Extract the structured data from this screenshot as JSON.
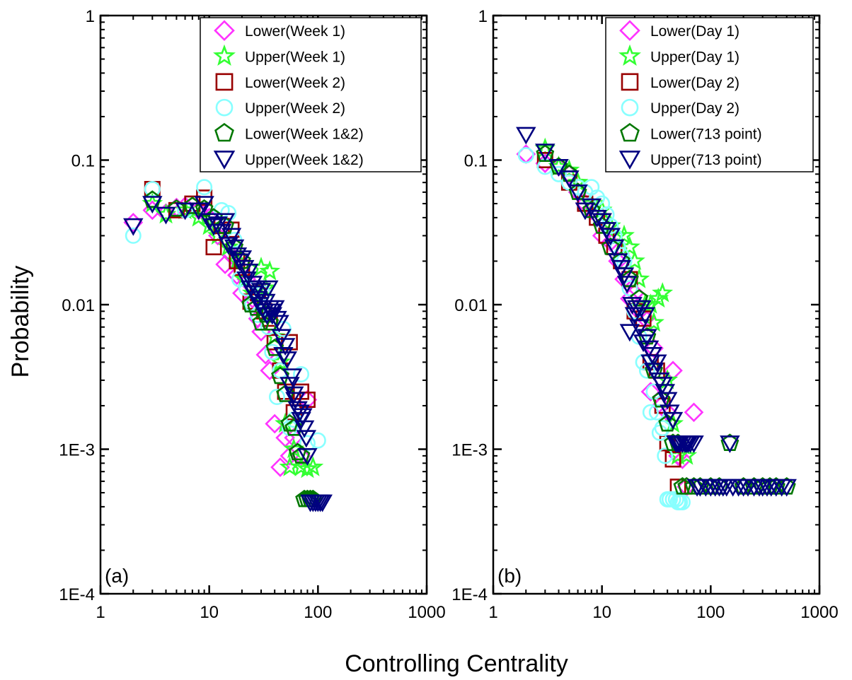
{
  "figure": {
    "ylabel": "Probability",
    "xlabel": "Controlling Centrality"
  },
  "chart_data": [
    {
      "type": "scatter",
      "panel_label": "(a)",
      "x_scale": "log",
      "y_scale": "log",
      "xlim": [
        1,
        1000
      ],
      "ylim": [
        0.0001,
        1
      ],
      "x_ticks": [
        1,
        10,
        100,
        1000
      ],
      "x_tick_labels": [
        "1",
        "10",
        "100",
        "1000"
      ],
      "y_ticks": [
        0.0001,
        0.001,
        0.01,
        0.1,
        1
      ],
      "y_tick_labels": [
        "1E-4",
        "1E-3",
        "0.01",
        "0.1",
        "1"
      ],
      "grid": false,
      "legend_position": "top-right",
      "series": [
        {
          "name": "Lower(Week 1)",
          "marker": "diamond",
          "color": "#ff33ff",
          "x": [
            2,
            3,
            4,
            5,
            6,
            8,
            10,
            12,
            14,
            16,
            18,
            20,
            22,
            25,
            28,
            30,
            33,
            36,
            40,
            45,
            50,
            55,
            60,
            70,
            80
          ],
          "y": [
            0.037,
            0.045,
            0.043,
            0.047,
            0.048,
            0.045,
            0.04,
            0.03,
            0.019,
            0.022,
            0.016,
            0.012,
            0.015,
            0.011,
            0.008,
            0.0065,
            0.0045,
            0.0035,
            0.0015,
            0.00075,
            0.0012,
            0.0009,
            0.0012,
            0.0009,
            0.0022
          ]
        },
        {
          "name": "Upper(Week 1)",
          "marker": "star",
          "color": "#33ff33",
          "x": [
            3,
            4,
            6,
            8,
            10,
            12,
            15,
            18,
            21,
            25,
            30,
            33,
            36,
            40,
            45,
            50,
            55,
            60,
            70,
            80,
            90
          ],
          "y": [
            0.05,
            0.042,
            0.045,
            0.04,
            0.035,
            0.03,
            0.025,
            0.02,
            0.015,
            0.012,
            0.018,
            0.013,
            0.017,
            0.006,
            0.004,
            0.0015,
            0.00075,
            0.001,
            0.00075,
            0.00073,
            0.00075
          ]
        },
        {
          "name": "Lower(Week 2)",
          "marker": "square",
          "color": "#990000",
          "x": [
            3,
            5,
            7,
            9,
            11,
            13,
            16,
            18,
            20,
            24,
            28,
            32,
            36,
            40,
            45,
            50,
            55,
            60,
            70,
            80
          ],
          "y": [
            0.063,
            0.045,
            0.05,
            0.055,
            0.025,
            0.035,
            0.033,
            0.02,
            0.018,
            0.0105,
            0.012,
            0.009,
            0.008,
            0.0055,
            0.0035,
            0.0025,
            0.0055,
            0.0018,
            0.0025,
            0.0022
          ]
        },
        {
          "name": "Upper(Week 2)",
          "marker": "circle",
          "color": "#88ffff",
          "x": [
            2,
            3,
            6,
            9,
            11,
            13,
            15,
            17,
            19,
            22,
            25,
            28,
            31,
            35,
            38,
            42,
            45,
            48,
            55,
            60,
            70,
            80,
            100
          ],
          "y": [
            0.03,
            0.063,
            0.045,
            0.065,
            0.04,
            0.045,
            0.043,
            0.028,
            0.015,
            0.013,
            0.01,
            0.0085,
            0.012,
            0.007,
            0.0047,
            0.0023,
            0.0035,
            0.0068,
            0.0014,
            0.0016,
            0.0033,
            0.0011,
            0.00115
          ]
        },
        {
          "name": "Lower(Week 1&2)",
          "marker": "pentagon",
          "color": "#007700",
          "x": [
            3,
            5,
            7,
            9,
            11,
            14,
            17,
            20,
            24,
            27,
            30,
            33,
            36,
            40,
            45,
            50,
            55,
            60,
            65,
            70,
            75,
            80,
            85,
            90
          ],
          "y": [
            0.053,
            0.046,
            0.048,
            0.046,
            0.04,
            0.035,
            0.025,
            0.02,
            0.01,
            0.0095,
            0.0075,
            0.0085,
            0.0075,
            0.005,
            0.0032,
            0.0024,
            0.0015,
            0.0014,
            0.00095,
            0.0009,
            0.00045,
            0.00045,
            0.00045,
            0.00045
          ]
        },
        {
          "name": "Upper(Week 1&2)",
          "marker": "triangle-down",
          "color": "#000080",
          "x": [
            2,
            3,
            4,
            6,
            8,
            9,
            10,
            11,
            12,
            13,
            14,
            15,
            16,
            17,
            18,
            19,
            20,
            21,
            22,
            23,
            24,
            25,
            26,
            27,
            28,
            29,
            30,
            31,
            32,
            33,
            34,
            35,
            36,
            37,
            38,
            40,
            42,
            44,
            46,
            48,
            50,
            52,
            55,
            58,
            60,
            62,
            65,
            68,
            70,
            72,
            75,
            78,
            80,
            85,
            90,
            95,
            100,
            105,
            110
          ],
          "y": [
            0.035,
            0.05,
            0.042,
            0.045,
            0.045,
            0.05,
            0.038,
            0.035,
            0.036,
            0.032,
            0.038,
            0.026,
            0.03,
            0.025,
            0.022,
            0.02,
            0.021,
            0.018,
            0.015,
            0.017,
            0.013,
            0.014,
            0.012,
            0.013,
            0.011,
            0.01,
            0.0125,
            0.0095,
            0.009,
            0.0105,
            0.0085,
            0.013,
            0.0095,
            0.009,
            0.0085,
            0.0095,
            0.008,
            0.0075,
            0.006,
            0.0045,
            0.0052,
            0.0042,
            0.0028,
            0.0032,
            0.0024,
            0.0022,
            0.0019,
            0.0018,
            0.0016,
            0.0017,
            0.0014,
            0.0012,
            0.0009,
            0.00043,
            0.00043,
            0.00043,
            0.00043,
            0.00043,
            0.00043
          ]
        }
      ]
    },
    {
      "type": "scatter",
      "panel_label": "(b)",
      "x_scale": "log",
      "y_scale": "log",
      "xlim": [
        1,
        1000
      ],
      "ylim": [
        0.0001,
        1
      ],
      "x_ticks": [
        1,
        10,
        100,
        1000
      ],
      "x_tick_labels": [
        "1",
        "10",
        "100",
        "1000"
      ],
      "y_ticks": [
        0.0001,
        0.001,
        0.01,
        0.1,
        1
      ],
      "y_tick_labels": [
        "1E-4",
        "1E-3",
        "0.01",
        "0.1",
        "1"
      ],
      "grid": false,
      "legend_position": "top-right",
      "series": [
        {
          "name": "Lower(Day 1)",
          "marker": "diamond",
          "color": "#ff33ff",
          "x": [
            2,
            3,
            4,
            5,
            6,
            7,
            8,
            10,
            12,
            14,
            16,
            18,
            20,
            22,
            25,
            28,
            30,
            35,
            40,
            45,
            50,
            55,
            60,
            70
          ],
          "y": [
            0.11,
            0.095,
            0.09,
            0.08,
            0.06,
            0.05,
            0.045,
            0.03,
            0.027,
            0.02,
            0.015,
            0.011,
            0.012,
            0.009,
            0.008,
            0.0025,
            0.005,
            0.002,
            0.0018,
            0.0035,
            0.0009,
            0.00085,
            0.00055,
            0.0018
          ]
        },
        {
          "name": "Upper(Day 1)",
          "marker": "star",
          "color": "#33ff33",
          "x": [
            3,
            4,
            5,
            6,
            8,
            10,
            12,
            14,
            16,
            18,
            20,
            22,
            25,
            28,
            30,
            33,
            36,
            40,
            45,
            50,
            60
          ],
          "y": [
            0.12,
            0.09,
            0.085,
            0.07,
            0.05,
            0.045,
            0.035,
            0.03,
            0.03,
            0.025,
            0.02,
            0.015,
            0.01,
            0.01,
            0.0075,
            0.011,
            0.012,
            0.003,
            0.0015,
            0.0009,
            0.0009
          ]
        },
        {
          "name": "Lower(Day 2)",
          "marker": "square",
          "color": "#990000",
          "x": [
            3,
            5,
            7,
            9,
            11,
            13,
            15,
            18,
            20,
            24,
            28,
            32,
            36,
            40,
            45,
            50
          ],
          "y": [
            0.1,
            0.07,
            0.05,
            0.04,
            0.03,
            0.025,
            0.02,
            0.015,
            0.009,
            0.008,
            0.004,
            0.0035,
            0.002,
            0.0011,
            0.00085,
            0.00055
          ]
        },
        {
          "name": "Upper(Day 2)",
          "marker": "circle",
          "color": "#88ffff",
          "x": [
            2,
            3,
            4,
            5,
            6,
            7,
            8,
            9,
            10,
            11,
            12,
            13,
            14,
            15,
            16,
            18,
            20,
            22,
            24,
            26,
            28,
            30,
            32,
            34,
            36,
            38,
            40,
            42,
            45,
            48,
            50,
            52,
            55
          ],
          "y": [
            0.108,
            0.09,
            0.08,
            0.07,
            0.065,
            0.06,
            0.065,
            0.055,
            0.05,
            0.042,
            0.035,
            0.03,
            0.025,
            0.022,
            0.02,
            0.013,
            0.009,
            0.006,
            0.004,
            0.0035,
            0.0018,
            0.0025,
            0.0018,
            0.0013,
            0.0014,
            0.0009,
            0.00045,
            0.00045,
            0.00045,
            0.00045,
            0.00043,
            0.00043,
            0.00043
          ]
        },
        {
          "name": "Lower(713 point)",
          "marker": "pentagon",
          "color": "#007700",
          "x": [
            3,
            4,
            5,
            6,
            8,
            10,
            12,
            15,
            18,
            22,
            26,
            30,
            35,
            40,
            45,
            50,
            55,
            60,
            70,
            80,
            100,
            120,
            150,
            200,
            250,
            300,
            350,
            400,
            500
          ],
          "y": [
            0.11,
            0.09,
            0.08,
            0.06,
            0.045,
            0.035,
            0.025,
            0.02,
            0.015,
            0.011,
            0.006,
            0.0035,
            0.0022,
            0.0015,
            0.0011,
            0.0011,
            0.00055,
            0.00055,
            0.00055,
            0.00055,
            0.00055,
            0.00055,
            0.0011,
            0.00055,
            0.00055,
            0.00055,
            0.00055,
            0.00055,
            0.00055
          ]
        },
        {
          "name": "Upper(713 point)",
          "marker": "triangle-down",
          "color": "#000080",
          "x": [
            2,
            3,
            4,
            5,
            6,
            7,
            8,
            9,
            10,
            11,
            12,
            13,
            14,
            15,
            16,
            17,
            18,
            19,
            20,
            21,
            22,
            23,
            24,
            25,
            26,
            27,
            28,
            29,
            30,
            32,
            34,
            36,
            38,
            40,
            42,
            45,
            48,
            50,
            52,
            55,
            58,
            60,
            62,
            65,
            70,
            75,
            80,
            90,
            100,
            110,
            120,
            130,
            140,
            150,
            160,
            180,
            200,
            220,
            250,
            280,
            300,
            330,
            360,
            400,
            450,
            500
          ],
          "y": [
            0.15,
            0.115,
            0.09,
            0.075,
            0.06,
            0.045,
            0.048,
            0.04,
            0.038,
            0.033,
            0.03,
            0.025,
            0.02,
            0.018,
            0.016,
            0.014,
            0.0065,
            0.01,
            0.0085,
            0.0095,
            0.007,
            0.0095,
            0.0055,
            0.0085,
            0.006,
            0.005,
            0.004,
            0.0045,
            0.0035,
            0.004,
            0.003,
            0.0028,
            0.0025,
            0.0022,
            0.0018,
            0.0016,
            0.0011,
            0.0011,
            0.0011,
            0.0011,
            0.0011,
            0.0011,
            0.0011,
            0.0011,
            0.0011,
            0.00055,
            0.00055,
            0.00055,
            0.00055,
            0.00055,
            0.00055,
            0.00055,
            0.00055,
            0.0011,
            0.00055,
            0.00055,
            0.00055,
            0.00055,
            0.00055,
            0.00055,
            0.00055,
            0.00055,
            0.00055,
            0.00055,
            0.00055,
            0.00055
          ]
        }
      ]
    }
  ]
}
